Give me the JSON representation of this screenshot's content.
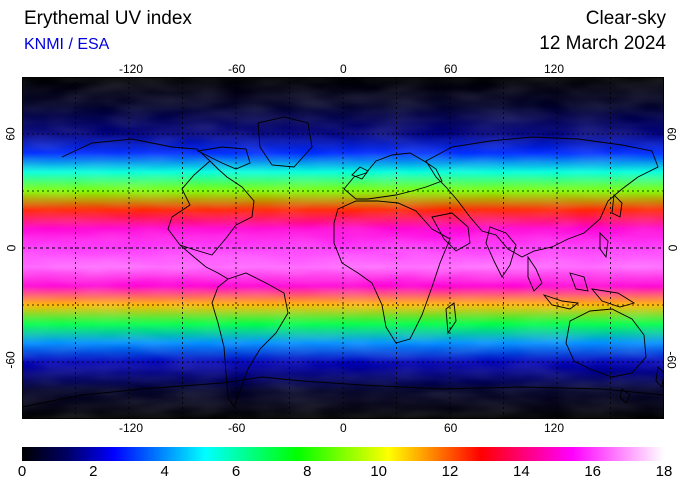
{
  "header": {
    "title": "Erythemal UV index",
    "source": "KNMI / ESA",
    "mode": "Clear-sky",
    "date": "12 March 2024"
  },
  "map": {
    "projection": "equirectangular",
    "longitude_ticks": [
      "-120",
      "-60",
      "0",
      "60",
      "120"
    ],
    "latitude_ticks": [
      "60",
      "0",
      "-60"
    ],
    "lon_range": [
      -180,
      180
    ],
    "lat_range": [
      -90,
      90
    ],
    "grid": "dashed every 30 degrees",
    "uv_by_latitude": {
      "lat": [
        90,
        75,
        60,
        50,
        40,
        30,
        20,
        10,
        0,
        -10,
        -20,
        -30,
        -40,
        -50,
        -60,
        -75,
        -90
      ],
      "uv": [
        0,
        0.5,
        1.5,
        3,
        5.5,
        9,
        12.5,
        15,
        16,
        16.5,
        15,
        11,
        7,
        4,
        2,
        0.5,
        0
      ]
    }
  },
  "colorbar": {
    "min": 0,
    "max": 18,
    "labels": [
      "0",
      "2",
      "4",
      "6",
      "8",
      "10",
      "12",
      "14",
      "16",
      "18"
    ],
    "colors": [
      "#000000",
      "#000066",
      "#0000ff",
      "#0080ff",
      "#00ffff",
      "#00ff80",
      "#00ff00",
      "#80ff00",
      "#ffff00",
      "#ff8000",
      "#ff0000",
      "#ff0080",
      "#ff00ff",
      "#ff80ff",
      "#ffffff"
    ]
  }
}
